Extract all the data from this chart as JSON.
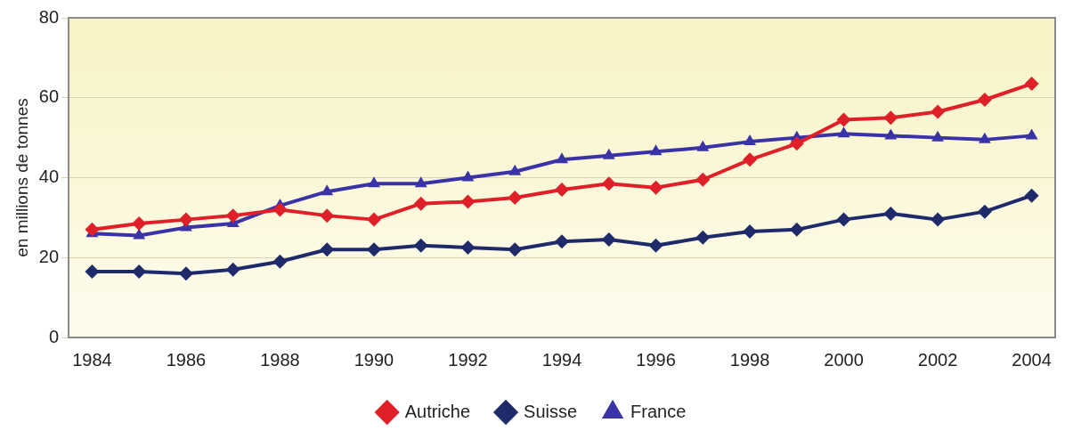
{
  "chart_data": {
    "type": "line",
    "ylabel": "en millions de tonnes",
    "categories": [
      "1984",
      null,
      "1986",
      null,
      "1988",
      null,
      "1990",
      null,
      "1992",
      null,
      "1994",
      null,
      "1996",
      null,
      "1998",
      null,
      "2000",
      null,
      "2002",
      null,
      "2004"
    ],
    "series": [
      {
        "name": "Autriche",
        "color": "#e02028",
        "marker": "diamond",
        "values": [
          27,
          28.5,
          29.5,
          30.5,
          32,
          30.5,
          29.5,
          33.5,
          34,
          35,
          37,
          38.5,
          37.5,
          39.5,
          44.5,
          48.5,
          54.5,
          55,
          56.5,
          59.5,
          63.5
        ]
      },
      {
        "name": "Suisse",
        "color": "#1f2a6b",
        "marker": "diamond",
        "values": [
          16.5,
          16.5,
          16,
          17,
          19,
          22,
          22,
          23,
          22.5,
          22,
          24,
          24.5,
          23,
          25,
          26.5,
          27,
          29.5,
          31,
          29.5,
          31.5,
          35.5
        ]
      },
      {
        "name": "France",
        "color": "#3a33a8",
        "marker": "triangle",
        "values": [
          26,
          25.5,
          27.5,
          28.5,
          33,
          36.5,
          38.5,
          38.5,
          40,
          41.5,
          44.5,
          45.5,
          46.5,
          47.5,
          49,
          50,
          51,
          50.5,
          50,
          49.5,
          50.5
        ]
      }
    ],
    "ylim": [
      0,
      80
    ],
    "yticks": [
      0,
      20,
      40,
      60,
      80
    ],
    "grid": "y",
    "legend": "bottom"
  }
}
